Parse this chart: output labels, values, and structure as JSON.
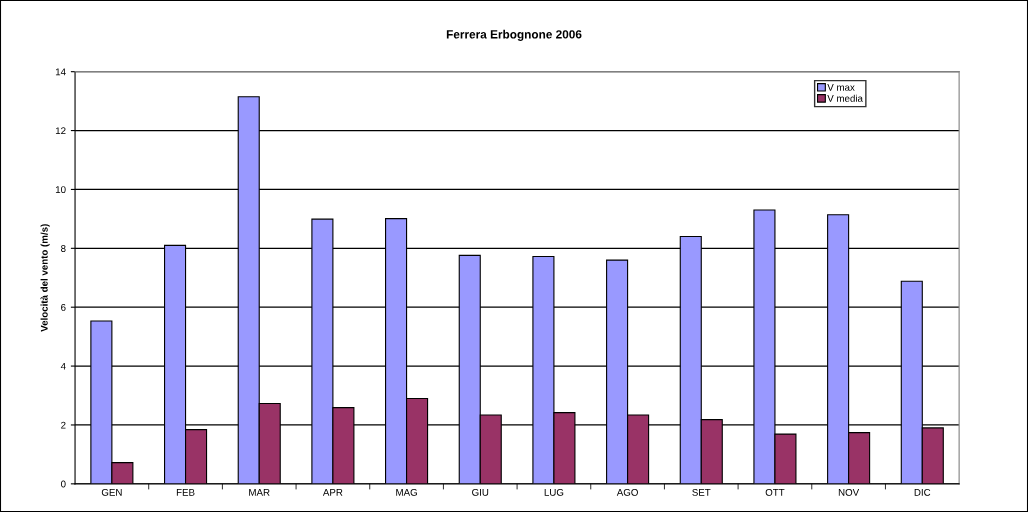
{
  "chart_data": {
    "type": "bar",
    "title": "Ferrera Erbognone 2006",
    "ylabel": "Velocità del vento (m/s)",
    "categories": [
      "GEN",
      "FEB",
      "MAR",
      "APR",
      "MAG",
      "GIU",
      "LUG",
      "AGO",
      "SET",
      "OTT",
      "NOV",
      "DIC"
    ],
    "series": [
      {
        "name": "V max",
        "color": "#9999ff",
        "values": [
          5.53,
          8.1,
          13.15,
          8.99,
          9.01,
          7.76,
          7.72,
          7.6,
          8.4,
          9.3,
          9.14,
          6.88
        ]
      },
      {
        "name": "V media",
        "color": "#993366",
        "values": [
          0.72,
          1.84,
          2.73,
          2.59,
          2.9,
          2.34,
          2.42,
          2.34,
          2.18,
          1.69,
          1.74,
          1.9
        ]
      }
    ],
    "ylim": [
      0,
      14
    ],
    "yticks": [
      0,
      2,
      4,
      6,
      8,
      10,
      12,
      14
    ],
    "grid": "y",
    "legend": "top right"
  }
}
